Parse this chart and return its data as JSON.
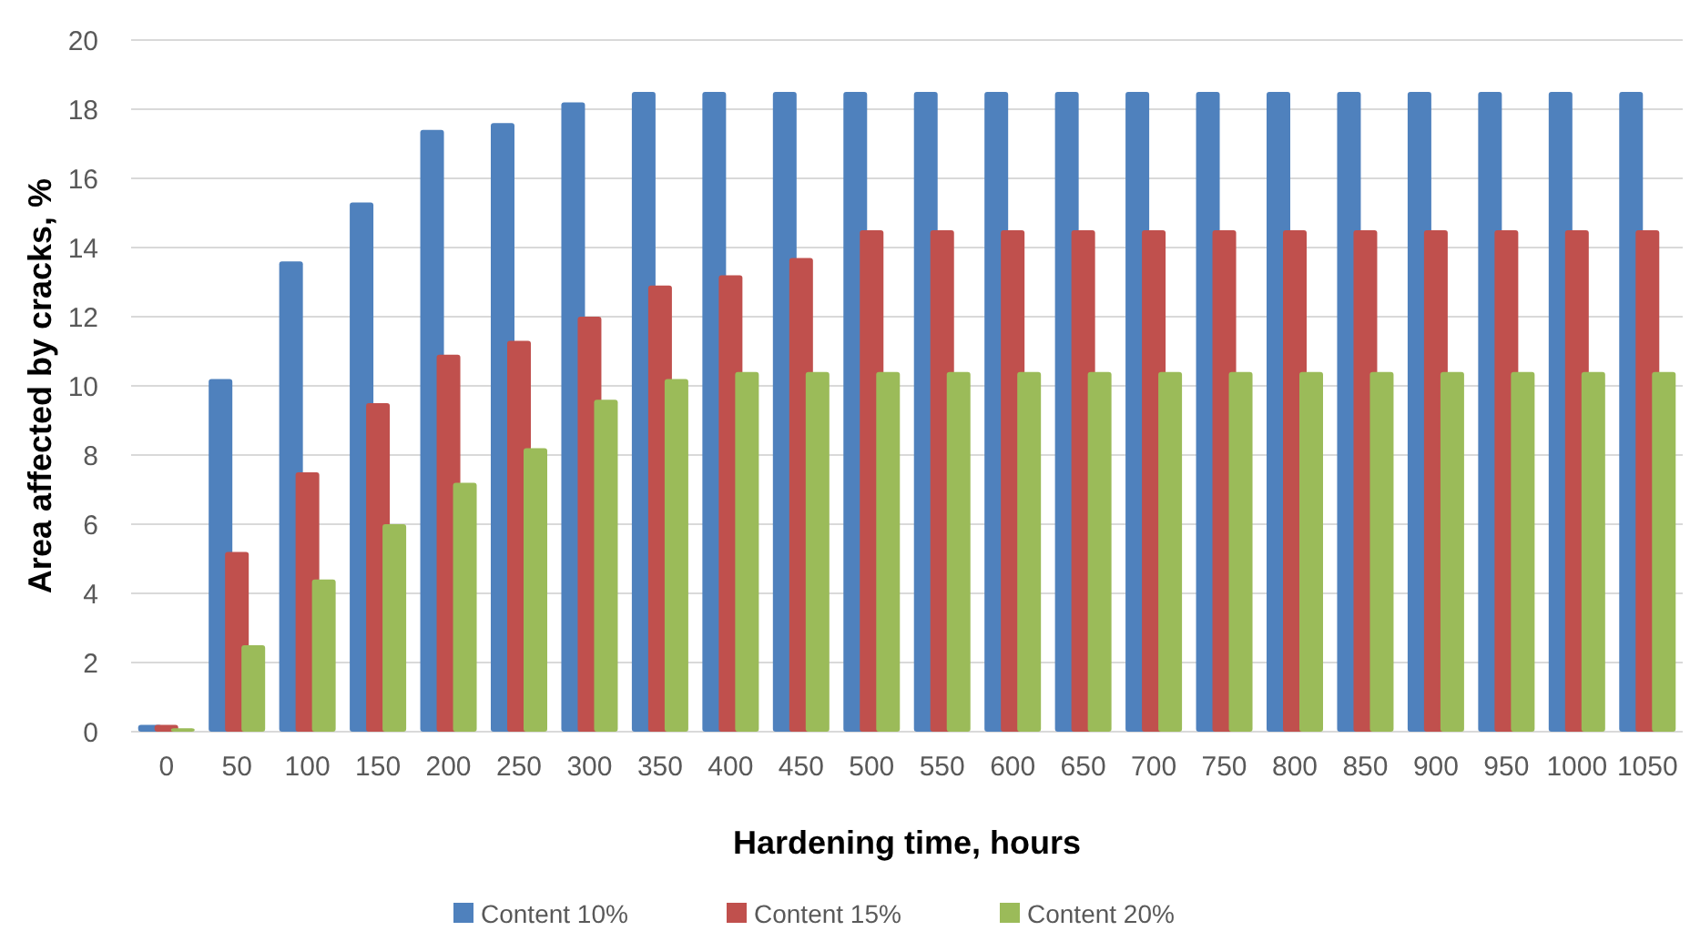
{
  "chart_data": {
    "type": "bar",
    "xlabel": "Hardening time, hours",
    "ylabel": "Area affected by cracks, %",
    "categories": [
      "0",
      "50",
      "100",
      "150",
      "200",
      "250",
      "300",
      "350",
      "400",
      "450",
      "500",
      "550",
      "600",
      "650",
      "700",
      "750",
      "800",
      "850",
      "900",
      "950",
      "1000",
      "1050"
    ],
    "series": [
      {
        "name": "Content 10%",
        "color": "#4f81bd",
        "values": [
          0.2,
          10.2,
          13.6,
          15.3,
          17.4,
          17.6,
          18.2,
          18.5,
          18.5,
          18.5,
          18.5,
          18.5,
          18.5,
          18.5,
          18.5,
          18.5,
          18.5,
          18.5,
          18.5,
          18.5,
          18.5,
          18.5
        ]
      },
      {
        "name": "Content 15%",
        "color": "#c0504d",
        "values": [
          0.2,
          5.2,
          7.5,
          9.5,
          10.9,
          11.3,
          12.0,
          12.9,
          13.2,
          13.7,
          14.5,
          14.5,
          14.5,
          14.5,
          14.5,
          14.5,
          14.5,
          14.5,
          14.5,
          14.5,
          14.5,
          14.5
        ]
      },
      {
        "name": "Content 20%",
        "color": "#9bbb59",
        "values": [
          0.1,
          2.5,
          4.4,
          6.0,
          7.2,
          8.2,
          9.6,
          10.2,
          10.4,
          10.4,
          10.4,
          10.4,
          10.4,
          10.4,
          10.4,
          10.4,
          10.4,
          10.4,
          10.4,
          10.4,
          10.4,
          10.4
        ]
      }
    ],
    "ylim": [
      0,
      20
    ],
    "yticks": [
      0,
      2,
      4,
      6,
      8,
      10,
      12,
      14,
      16,
      18,
      20
    ],
    "grid": "y",
    "legend": "bottom"
  }
}
